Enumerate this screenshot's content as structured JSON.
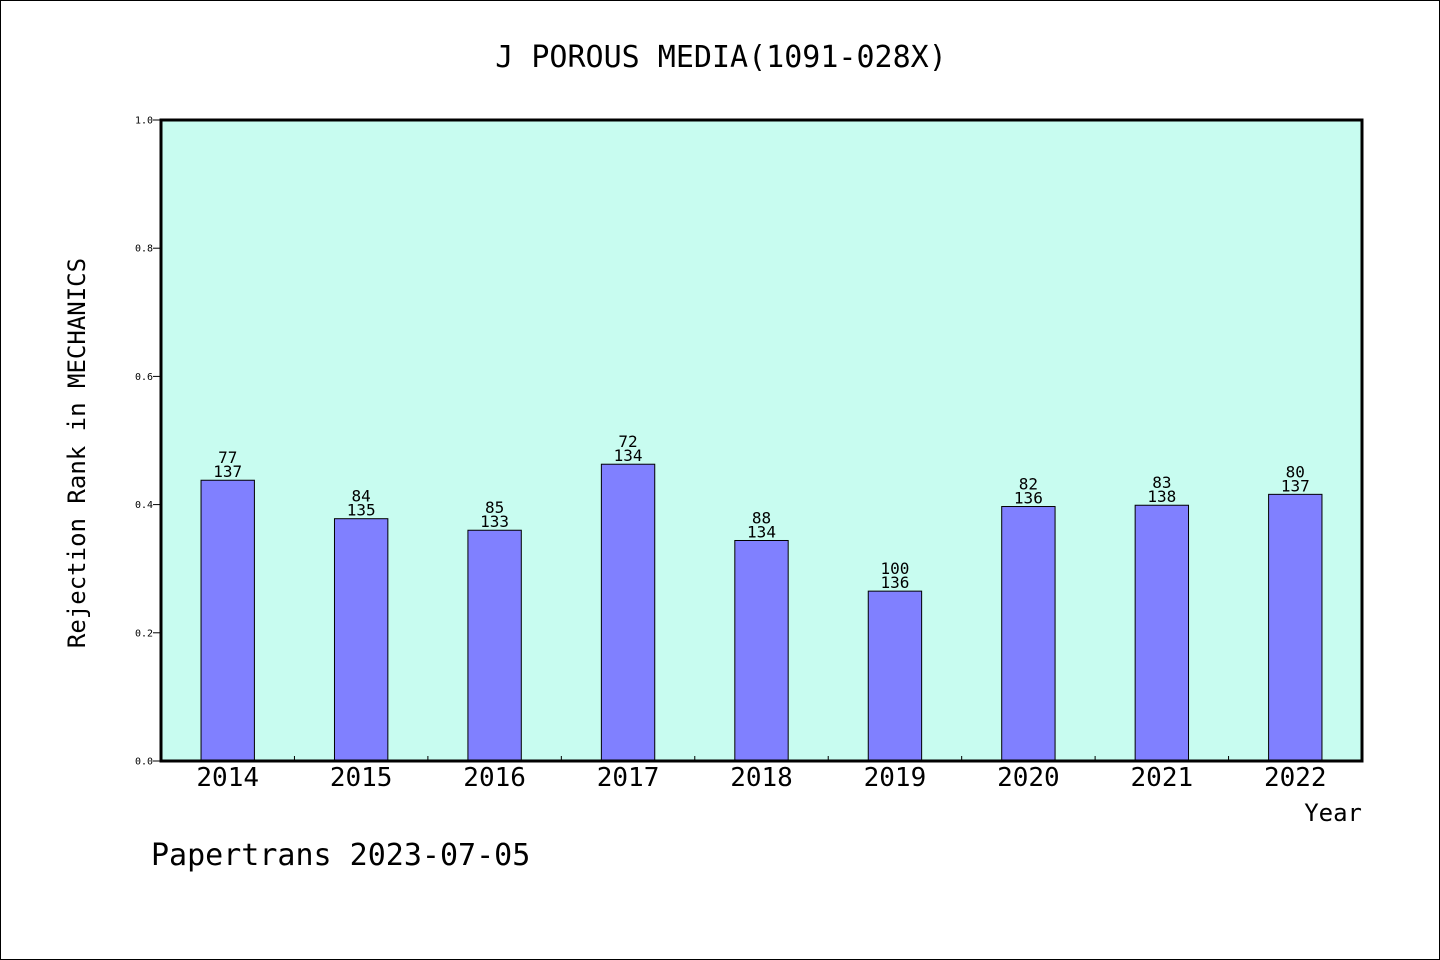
{
  "chart_data": {
    "type": "bar",
    "title": "J POROUS MEDIA(1091-028X)",
    "xlabel": "Year",
    "ylabel": "Rejection Rank in MECHANICS",
    "ylim": [
      0,
      1.0
    ],
    "yticks": [
      "0.0",
      "0.2",
      "0.4",
      "0.6",
      "0.8",
      "1.0"
    ],
    "categories": [
      "2014",
      "2015",
      "2016",
      "2017",
      "2018",
      "2019",
      "2020",
      "2021",
      "2022"
    ],
    "values": [
      0.438,
      0.378,
      0.36,
      0.463,
      0.344,
      0.265,
      0.397,
      0.399,
      0.416
    ],
    "labels_top": [
      "77",
      "84",
      "85",
      "72",
      "88",
      "100",
      "82",
      "83",
      "80"
    ],
    "labels_bottom": [
      "137",
      "135",
      "133",
      "134",
      "134",
      "136",
      "136",
      "138",
      "137"
    ],
    "grid": false,
    "colors": {
      "plot_bg": "#c8fcf0",
      "bar": "#8080ff",
      "bar_edge": "#000000"
    }
  },
  "footer": {
    "text": "Papertrans 2023-07-05"
  }
}
